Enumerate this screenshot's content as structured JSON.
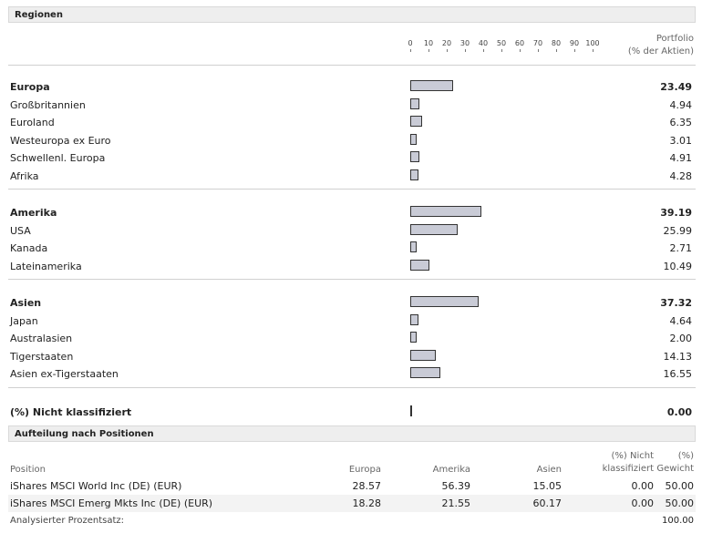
{
  "regions": {
    "title": "Regionen",
    "axis_ticks": [
      "0",
      "10",
      "20",
      "30",
      "40",
      "50",
      "60",
      "70",
      "80",
      "90",
      "100"
    ],
    "portfolio_header_line1": "Portfolio",
    "portfolio_header_line2": "(% der Aktien)"
  },
  "chart_data": {
    "type": "bar",
    "orientation": "horizontal",
    "xlim": [
      0,
      100
    ],
    "groups": [
      {
        "name": "Europa",
        "value": 23.49,
        "children": [
          {
            "name": "Großbritannien",
            "value": 4.94
          },
          {
            "name": "Euroland",
            "value": 6.35
          },
          {
            "name": "Westeuropa ex Euro",
            "value": 3.01
          },
          {
            "name": "Schwellenl. Europa",
            "value": 4.91
          },
          {
            "name": "Afrika",
            "value": 4.28
          }
        ]
      },
      {
        "name": "Amerika",
        "value": 39.19,
        "children": [
          {
            "name": "USA",
            "value": 25.99
          },
          {
            "name": "Kanada",
            "value": 2.71
          },
          {
            "name": "Lateinamerika",
            "value": 10.49
          }
        ]
      },
      {
        "name": "Asien",
        "value": 37.32,
        "children": [
          {
            "name": "Japan",
            "value": 4.64
          },
          {
            "name": "Australasien",
            "value": 2.0
          },
          {
            "name": "Tigerstaaten",
            "value": 14.13
          },
          {
            "name": "Asien ex-Tigerstaaten",
            "value": 16.55
          }
        ]
      }
    ],
    "unclassified": {
      "name": "(%) Nicht klassifiziert",
      "value": 0.0
    }
  },
  "positions": {
    "title": "Aufteilung nach Positionen",
    "headers": {
      "position": "Position",
      "europa": "Europa",
      "amerika": "Amerika",
      "asien": "Asien",
      "nicht_line1": "(%) Nicht",
      "nicht_line2": "klassifiziert",
      "gewicht_line1": "(%)",
      "gewicht_line2": "Gewicht"
    },
    "rows": [
      {
        "name": "iShares MSCI World Inc (DE) (EUR)",
        "europa": "28.57",
        "amerika": "56.39",
        "asien": "15.05",
        "nicht": "0.00",
        "gewicht": "50.00"
      },
      {
        "name": "iShares MSCI Emerg Mkts Inc (DE) (EUR)",
        "europa": "18.28",
        "amerika": "21.55",
        "asien": "60.17",
        "nicht": "0.00",
        "gewicht": "50.00"
      }
    ],
    "footer_label": "Analysierter Prozentsatz:",
    "footer_value": "100.00"
  }
}
